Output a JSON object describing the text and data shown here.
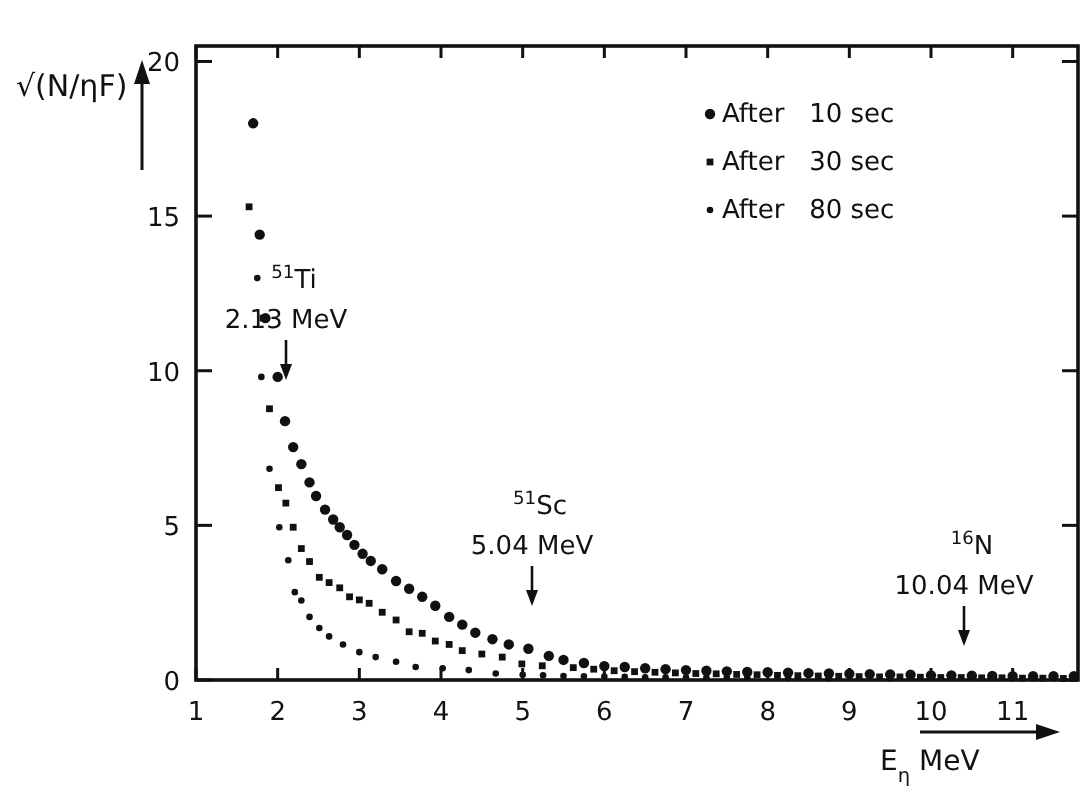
{
  "chart_data": {
    "type": "scatter",
    "xlabel": "E$_{η}$ MeV",
    "ylabel": "√(N/ηF)",
    "xlim": [
      1,
      11.8
    ],
    "ylim": [
      0,
      20.5
    ],
    "xticks": [
      1,
      2,
      3,
      4,
      5,
      6,
      7,
      8,
      9,
      10,
      11
    ],
    "yticks": [
      0,
      5,
      10,
      15,
      20
    ],
    "grid": false,
    "legend": "top right",
    "series": [
      {
        "name": "After   10 sec",
        "color": "#111111",
        "marker": "circle",
        "x": [
          1.7,
          1.78,
          1.85,
          2.0,
          2.09,
          2.19,
          2.29,
          2.39,
          2.47,
          2.58,
          2.68,
          2.76,
          2.85,
          2.94,
          3.04,
          3.14,
          3.28,
          3.45,
          3.61,
          3.77,
          3.93,
          4.1,
          4.26,
          4.42,
          4.63,
          4.83,
          5.07,
          5.32,
          5.5,
          5.75,
          6.0,
          6.25,
          6.5,
          6.75,
          7.0,
          7.25,
          7.5,
          7.75,
          8.0,
          8.25,
          8.5,
          8.75,
          9.0,
          9.25,
          9.5,
          9.75,
          10.0,
          10.25,
          10.5,
          10.75,
          11.0,
          11.25,
          11.5,
          11.75
        ],
        "values": [
          18.0,
          14.4,
          11.7,
          9.8,
          8.37,
          7.53,
          6.98,
          6.39,
          5.95,
          5.51,
          5.19,
          4.94,
          4.69,
          4.37,
          4.08,
          3.85,
          3.58,
          3.2,
          2.95,
          2.69,
          2.4,
          2.04,
          1.79,
          1.53,
          1.32,
          1.15,
          1.01,
          0.78,
          0.65,
          0.55,
          0.45,
          0.42,
          0.38,
          0.35,
          0.32,
          0.3,
          0.28,
          0.26,
          0.25,
          0.24,
          0.22,
          0.21,
          0.2,
          0.19,
          0.18,
          0.17,
          0.15,
          0.15,
          0.14,
          0.13,
          0.12,
          0.12,
          0.12,
          0.12
        ]
      },
      {
        "name": "After   30 sec",
        "color": "#111111",
        "marker": "square",
        "x": [
          1.65,
          1.82,
          1.9,
          2.01,
          2.1,
          2.19,
          2.29,
          2.39,
          2.51,
          2.63,
          2.76,
          2.88,
          3.0,
          3.12,
          3.28,
          3.45,
          3.61,
          3.77,
          3.93,
          4.1,
          4.26,
          4.5,
          4.75,
          4.99,
          5.24,
          5.62,
          5.87,
          6.12,
          6.37,
          6.62,
          6.87,
          7.12,
          7.37,
          7.62,
          7.87,
          8.12,
          8.37,
          8.62,
          8.87,
          9.12,
          9.37,
          9.62,
          9.87,
          10.12,
          10.37,
          10.62,
          10.87,
          11.12,
          11.37,
          11.62,
          11.75
        ],
        "values": [
          15.3,
          11.7,
          8.77,
          6.22,
          5.72,
          4.94,
          4.25,
          3.83,
          3.32,
          3.15,
          2.98,
          2.69,
          2.59,
          2.48,
          2.19,
          1.94,
          1.56,
          1.51,
          1.26,
          1.15,
          0.95,
          0.84,
          0.74,
          0.52,
          0.46,
          0.4,
          0.35,
          0.3,
          0.27,
          0.25,
          0.23,
          0.21,
          0.2,
          0.18,
          0.17,
          0.15,
          0.14,
          0.13,
          0.12,
          0.11,
          0.1,
          0.1,
          0.09,
          0.08,
          0.08,
          0.07,
          0.07,
          0.06,
          0.06,
          0.05,
          0.05
        ]
      },
      {
        "name": "After   80 sec",
        "color": "#111111",
        "marker": "circle",
        "x": [
          1.75,
          1.8,
          1.9,
          2.02,
          2.13,
          2.21,
          2.29,
          2.39,
          2.51,
          2.63,
          2.8,
          3.0,
          3.2,
          3.45,
          3.69,
          4.02,
          4.34,
          4.67,
          5.0,
          5.25,
          5.5,
          5.75,
          6.0,
          6.25,
          6.5,
          6.75,
          7.0,
          7.25,
          7.5,
          7.75,
          8.25,
          8.75,
          9.5
        ],
        "values": [
          13.0,
          9.8,
          6.83,
          4.94,
          3.87,
          2.84,
          2.57,
          2.04,
          1.68,
          1.41,
          1.15,
          0.9,
          0.74,
          0.59,
          0.42,
          0.38,
          0.32,
          0.21,
          0.17,
          0.15,
          0.13,
          0.12,
          0.11,
          0.1,
          0.09,
          0.09,
          0.08,
          0.08,
          0.07,
          0.07,
          0.06,
          0.05,
          0.05
        ]
      }
    ],
    "annotations": [
      "$^{51}$Ti\n2.13 MeV",
      "$^{51}$Sc\n5.04 MeV",
      "$^{16}$N\n10.04 MeV"
    ]
  }
}
